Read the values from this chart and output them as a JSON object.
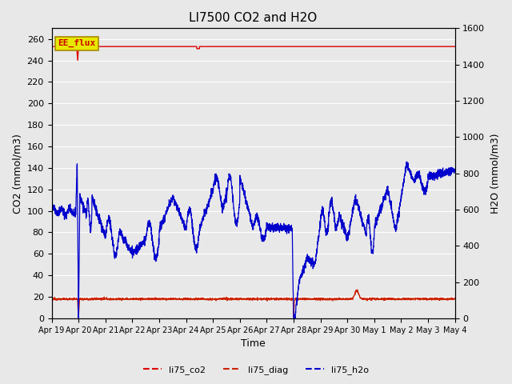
{
  "title": "LI7500 CO2 and H2O",
  "xlabel": "Time",
  "ylabel_left": "CO2 (mmol/m3)",
  "ylabel_right": "H2O (mmol/m3)",
  "ylim_left": [
    0,
    270
  ],
  "ylim_right": [
    0,
    1600
  ],
  "yticks_left": [
    0,
    20,
    40,
    60,
    80,
    100,
    120,
    140,
    160,
    180,
    200,
    220,
    240,
    260
  ],
  "yticks_right": [
    0,
    200,
    400,
    600,
    800,
    1000,
    1200,
    1400,
    1600
  ],
  "plot_bg_color": "#e8e8e8",
  "grid_color": "#ffffff",
  "annotation_text": "EE_flux",
  "annotation_box_color": "#e8e800",
  "annotation_text_color": "#cc0000",
  "legend_entries": [
    "li75_co2",
    "li75_diag",
    "li75_h2o"
  ],
  "legend_colors_r": [
    "#dd0000",
    "#dd0000",
    "#0000cc"
  ],
  "title_fontsize": 11,
  "axis_label_fontsize": 9,
  "tick_fontsize": 8,
  "num_points": 3000
}
